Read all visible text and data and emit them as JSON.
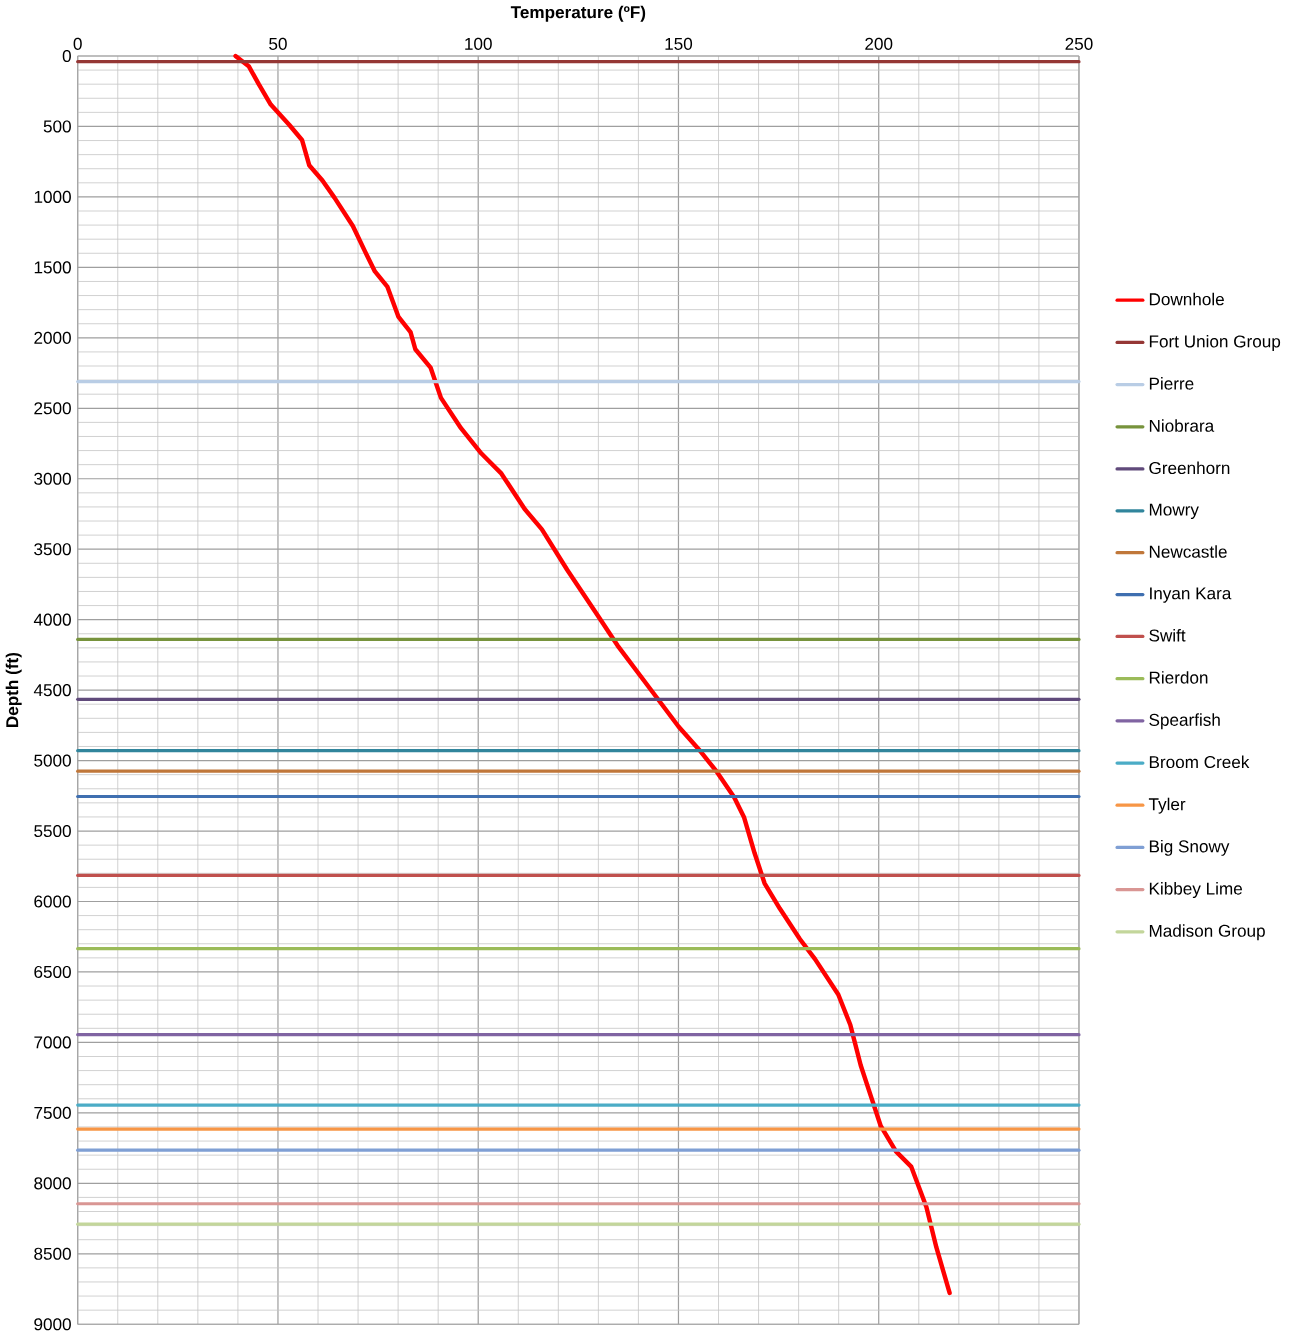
{
  "chart_data": {
    "type": "line",
    "xlabel": "Temperature (ºF)",
    "ylabel": "Depth (ft)",
    "xlim": [
      0,
      250
    ],
    "xticks": [
      0,
      50,
      100,
      150,
      200,
      250
    ],
    "ylim": [
      9000,
      0
    ],
    "yticks": [
      0,
      500,
      1000,
      1500,
      2000,
      2500,
      3000,
      3500,
      4000,
      4500,
      5000,
      5500,
      6000,
      6500,
      7000,
      7500,
      8000,
      8500,
      9000
    ],
    "grid": true,
    "legend": "right",
    "marker": "none",
    "line_style": "solid",
    "series": [
      {
        "name": "Downhole",
        "color": "#ff0000",
        "x": [
          39.4,
          42.7,
          45.2,
          48.2,
          52.8,
          56,
          57.8,
          61.1,
          64.1,
          68.7,
          71.7,
          74.2,
          77.3,
          80.1,
          83.1,
          84.3,
          88.1,
          90.7,
          95.7,
          100.8,
          105.8,
          111.6,
          115.9,
          122.2,
          129.8,
          134.8,
          142.4,
          150,
          155.6,
          159.6,
          163.9,
          166.4,
          169,
          171.5,
          175.3,
          180.3,
          184.1,
          189.9,
          192.9,
          195.5,
          198,
          200.5,
          204.3,
          208.1,
          211.9,
          214.4,
          217.7
        ],
        "values": [
          0,
          72,
          200,
          345,
          488,
          596,
          775,
          883,
          1005,
          1206,
          1385,
          1529,
          1636,
          1852,
          1959,
          2081,
          2211,
          2426,
          2641,
          2821,
          2964,
          3215,
          3359,
          3646,
          3969,
          4184,
          4471,
          4758,
          4938,
          5081,
          5261,
          5404,
          5656,
          5871,
          6050,
          6266,
          6409,
          6660,
          6875,
          7162,
          7378,
          7593,
          7773,
          7881,
          8168,
          8455,
          8778
        ]
      },
      {
        "name": "Fort Union Group",
        "color": "#953735",
        "x": [
          0,
          250
        ],
        "values": [
          40,
          40
        ]
      },
      {
        "name": "Pierre",
        "color": "#b9cde5",
        "x": [
          0,
          250
        ],
        "values": [
          2310,
          2310
        ]
      },
      {
        "name": "Niobrara",
        "color": "#77933c",
        "x": [
          0,
          250
        ],
        "values": [
          4140,
          4140
        ]
      },
      {
        "name": "Greenhorn",
        "color": "#604a7b",
        "x": [
          0,
          250
        ],
        "values": [
          4565,
          4565
        ]
      },
      {
        "name": "Mowry",
        "color": "#31859c",
        "x": [
          0,
          250
        ],
        "values": [
          4930,
          4930
        ]
      },
      {
        "name": "Newcastle",
        "color": "#c0773a",
        "x": [
          0,
          250
        ],
        "values": [
          5075,
          5075
        ]
      },
      {
        "name": "Inyan Kara",
        "color": "#3f6fb0",
        "x": [
          0,
          250
        ],
        "values": [
          5255,
          5255
        ]
      },
      {
        "name": "Swift",
        "color": "#c0504d",
        "x": [
          0,
          250
        ],
        "values": [
          5815,
          5815
        ]
      },
      {
        "name": "Rierdon",
        "color": "#9bbb59",
        "x": [
          0,
          250
        ],
        "values": [
          6335,
          6335
        ]
      },
      {
        "name": "Spearfish",
        "color": "#8064a2",
        "x": [
          0,
          250
        ],
        "values": [
          6945,
          6945
        ]
      },
      {
        "name": "Broom Creek",
        "color": "#4bacc6",
        "x": [
          0,
          250
        ],
        "values": [
          7445,
          7445
        ]
      },
      {
        "name": "Tyler",
        "color": "#f79646",
        "x": [
          0,
          250
        ],
        "values": [
          7615,
          7615
        ]
      },
      {
        "name": "Big Snowy",
        "color": "#7f9fd4",
        "x": [
          0,
          250
        ],
        "values": [
          7765,
          7765
        ]
      },
      {
        "name": "Kibbey Lime",
        "color": "#d99694",
        "x": [
          0,
          250
        ],
        "values": [
          8145,
          8145
        ]
      },
      {
        "name": "Madison Group",
        "color": "#c3d69b",
        "x": [
          0,
          250
        ],
        "values": [
          8290,
          8290
        ]
      }
    ]
  }
}
